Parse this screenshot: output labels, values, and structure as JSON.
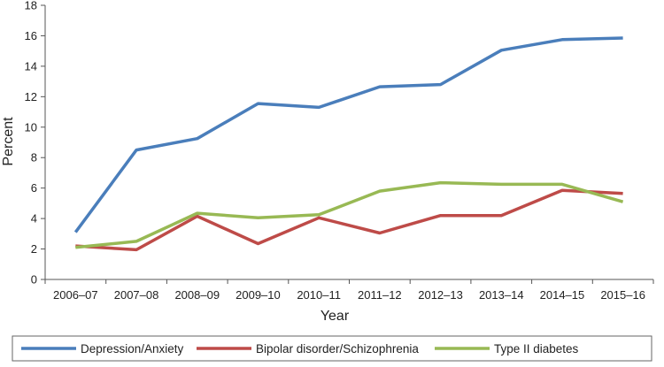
{
  "chart_data": {
    "type": "line",
    "xlabel": "Year",
    "ylabel": "Percent",
    "ylim": [
      0,
      18
    ],
    "yticks": [
      0,
      2,
      4,
      6,
      8,
      10,
      12,
      14,
      16,
      18
    ],
    "categories": [
      "2006–07",
      "2007–08",
      "2008–09",
      "2009–10",
      "2010–11",
      "2011–12",
      "2012–13",
      "2013–14",
      "2014–15",
      "2015–16"
    ],
    "grid": false,
    "legend_position": "bottom",
    "series": [
      {
        "name": "Depression/Anxiety",
        "color": "#4a7ebb",
        "values": [
          3.1,
          8.5,
          9.25,
          11.55,
          11.3,
          12.65,
          12.8,
          15.05,
          15.75,
          15.85
        ]
      },
      {
        "name": "Bipolar disorder/Schizophrenia",
        "color": "#be4b48",
        "values": [
          2.2,
          1.95,
          4.15,
          2.35,
          4.05,
          3.05,
          4.2,
          4.2,
          5.85,
          5.65
        ]
      },
      {
        "name": "Type II diabetes",
        "color": "#98b954",
        "values": [
          2.1,
          2.5,
          4.35,
          4.05,
          4.25,
          5.8,
          6.35,
          6.25,
          6.25,
          5.1
        ]
      }
    ]
  }
}
